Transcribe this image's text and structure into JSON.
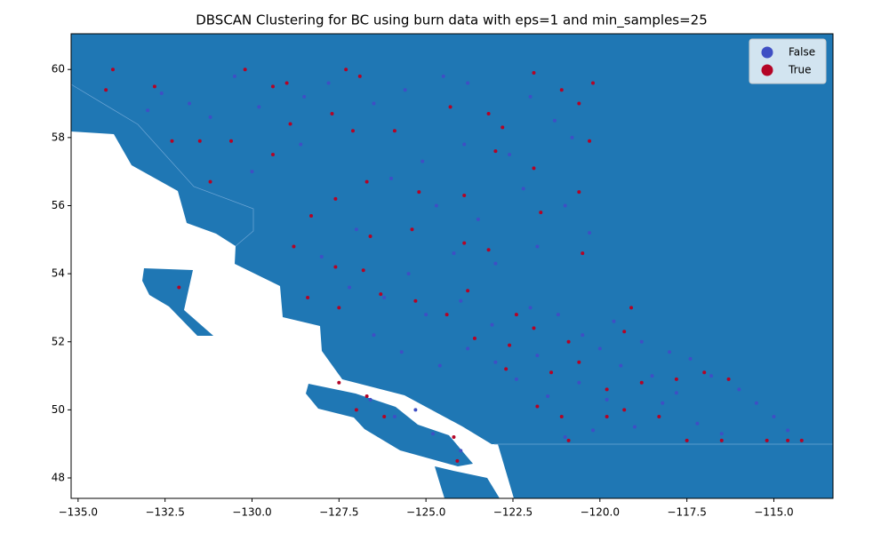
{
  "chart_data": {
    "type": "scatter",
    "title": "DBSCAN Clustering for BC using burn data with eps=1 and min_samples=25",
    "xlim": [
      -135.2,
      -113.3
    ],
    "ylim": [
      47.4,
      61.05
    ],
    "xticks": [
      {
        "value": -135,
        "label": "−135.0"
      },
      {
        "value": -132.5,
        "label": "−132.5"
      },
      {
        "value": -130,
        "label": "−130.0"
      },
      {
        "value": -127.5,
        "label": "−127.5"
      },
      {
        "value": -125,
        "label": "−125.0"
      },
      {
        "value": -122.5,
        "label": "−122.5"
      },
      {
        "value": -120,
        "label": "−120.0"
      },
      {
        "value": -117.5,
        "label": "−117.5"
      },
      {
        "value": -115,
        "label": "−115.0"
      }
    ],
    "yticks": [
      48,
      50,
      52,
      54,
      56,
      58,
      60
    ],
    "legend": "upper right",
    "series": [
      {
        "name": "False",
        "color": "#3f4fc4",
        "x": [
          -133.0,
          -132.6,
          -131.8,
          -131.2,
          -130.5,
          -129.8,
          -128.5,
          -127.8,
          -126.5,
          -125.6,
          -124.5,
          -123.8,
          -122.0,
          -121.3,
          -120.8,
          -122.6,
          -123.9,
          -125.1,
          -126.0,
          -124.7,
          -123.5,
          -122.2,
          -121.0,
          -120.3,
          -121.8,
          -123.0,
          -124.2,
          -125.5,
          -126.2,
          -125.0,
          -124.0,
          -123.1,
          -122.0,
          -121.2,
          -120.5,
          -119.6,
          -118.8,
          -118.0,
          -117.4,
          -116.8,
          -116.0,
          -115.5,
          -115.0,
          -114.6,
          -117.2,
          -118.2,
          -119.0,
          -119.8,
          -120.6,
          -121.5,
          -122.4,
          -123.0,
          -123.8,
          -124.6,
          -125.7,
          -126.5,
          -127.2,
          -128.0,
          -127.0,
          -118.5,
          -117.8,
          -116.5,
          -120.2,
          -121.0,
          -119.4,
          -120.0,
          -121.8,
          -126.6,
          -125.9,
          -124.8,
          -125.3,
          -128.6,
          -130.0,
          -124.0
        ],
        "y": [
          58.8,
          59.3,
          59.0,
          58.6,
          59.8,
          58.9,
          59.2,
          59.6,
          59.0,
          59.4,
          59.8,
          59.6,
          59.2,
          58.5,
          58.0,
          57.5,
          57.8,
          57.3,
          56.8,
          56.0,
          55.6,
          56.5,
          56.0,
          55.2,
          54.8,
          54.3,
          54.6,
          54.0,
          53.3,
          52.8,
          53.2,
          52.5,
          53.0,
          52.8,
          52.2,
          52.6,
          52.0,
          51.7,
          51.5,
          51.0,
          50.6,
          50.2,
          49.8,
          49.4,
          49.6,
          50.2,
          49.5,
          50.3,
          50.8,
          50.4,
          50.9,
          51.4,
          51.8,
          51.3,
          51.7,
          52.2,
          53.6,
          54.5,
          55.3,
          51.0,
          50.5,
          49.3,
          49.4,
          49.2,
          51.3,
          51.8,
          51.6,
          50.3,
          49.8,
          49.3,
          50.0,
          57.8,
          57.0,
          48.8
        ]
      },
      {
        "name": "True",
        "color": "#b40426",
        "x": [
          -134.0,
          -134.2,
          -132.8,
          -132.3,
          -131.5,
          -130.6,
          -130.2,
          -129.4,
          -129.0,
          -127.3,
          -126.9,
          -127.7,
          -128.9,
          -129.4,
          -127.1,
          -125.9,
          -124.3,
          -123.2,
          -122.8,
          -121.9,
          -121.1,
          -120.6,
          -120.2,
          -120.3,
          -121.9,
          -123.0,
          -123.9,
          -125.2,
          -126.7,
          -127.6,
          -128.3,
          -128.8,
          -126.6,
          -125.4,
          -123.9,
          -123.2,
          -121.7,
          -120.6,
          -120.5,
          -127.6,
          -126.8,
          -128.4,
          -127.5,
          -126.3,
          -125.3,
          -124.4,
          -123.8,
          -122.4,
          -123.6,
          -122.6,
          -121.9,
          -120.9,
          -119.3,
          -119.1,
          -122.7,
          -121.4,
          -120.6,
          -119.8,
          -118.8,
          -117.8,
          -117.0,
          -116.3,
          -121.8,
          -121.1,
          -119.8,
          -119.3,
          -118.3,
          -117.5,
          -116.5,
          -115.2,
          -114.6,
          -114.2,
          -120.9,
          -127.5,
          -126.7,
          -127.0,
          -126.2,
          -124.2,
          -124.1,
          -132.1,
          -131.2
        ],
        "y": [
          60.0,
          59.4,
          59.5,
          57.9,
          57.9,
          57.9,
          60.0,
          59.5,
          59.6,
          60.0,
          59.8,
          58.7,
          58.4,
          57.5,
          58.2,
          58.2,
          58.9,
          58.7,
          58.3,
          59.9,
          59.4,
          59.0,
          59.6,
          57.9,
          57.1,
          57.6,
          56.3,
          56.4,
          56.7,
          56.2,
          55.7,
          54.8,
          55.1,
          55.3,
          54.9,
          54.7,
          55.8,
          56.4,
          54.6,
          54.2,
          54.1,
          53.3,
          53.0,
          53.4,
          53.2,
          52.8,
          53.5,
          52.8,
          52.1,
          51.9,
          52.4,
          52.0,
          52.3,
          53.0,
          51.2,
          51.1,
          51.4,
          50.6,
          50.8,
          50.9,
          51.1,
          50.9,
          50.1,
          49.8,
          49.8,
          50.0,
          49.8,
          49.1,
          49.1,
          49.1,
          49.1,
          49.1,
          49.1,
          50.8,
          50.4,
          50.0,
          49.8,
          49.2,
          48.5,
          53.6,
          56.7
        ]
      }
    ]
  }
}
